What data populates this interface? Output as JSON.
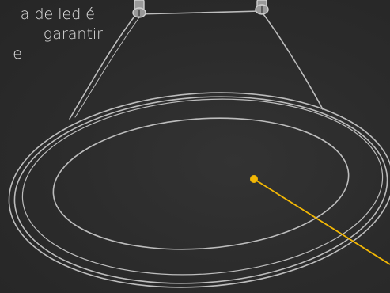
{
  "caption": {
    "line_1": "a de led é",
    "line_2": "garantir",
    "line_3": "e"
  },
  "colors": {
    "background": "#2d2d2d",
    "outline": "#bdbdbd",
    "callout": "#f2b705",
    "text": "#e4e4e4"
  },
  "icons": [
    "mounting-screw-icon",
    "mounting-screw-icon"
  ]
}
